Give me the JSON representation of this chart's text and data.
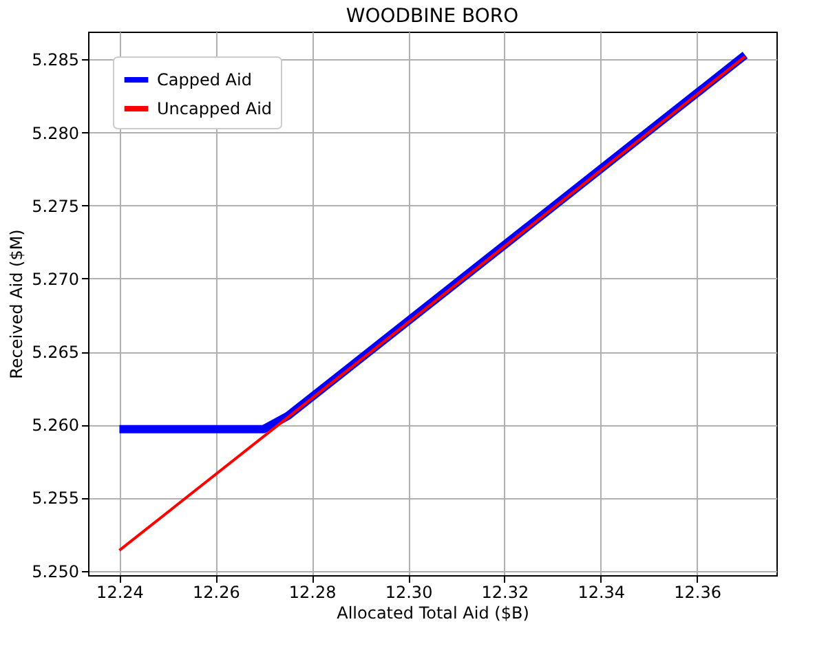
{
  "chart_data": {
    "type": "line",
    "title": "WOODBINE BORO",
    "xlabel": "Allocated Total Aid ($B)",
    "ylabel": "Received Aid ($M)",
    "series": [
      {
        "name": "Capped Aid",
        "color": "#0000ff",
        "x": [
          12.24,
          12.25,
          12.26,
          12.27,
          12.275,
          12.37
        ],
        "values": [
          5.2597,
          5.2597,
          5.2597,
          5.2597,
          5.2606,
          5.2853
        ]
      },
      {
        "name": "Uncapped Aid",
        "color": "#ff0000",
        "x": [
          12.24,
          12.37
        ],
        "values": [
          5.2514,
          5.2852
        ]
      }
    ],
    "xlim": [
      12.2335,
      12.3765
    ],
    "ylim": [
      5.2497,
      5.2869
    ],
    "xticks": [
      12.24,
      12.26,
      12.28,
      {
        "value": 12.3,
        "label": "12.30"
      },
      12.32,
      12.34,
      12.36
    ],
    "yticks": [
      {
        "value": 5.25,
        "label": "5.250"
      },
      5.255,
      {
        "value": 5.26,
        "label": "5.260"
      },
      5.265,
      {
        "value": 5.27,
        "label": "5.270"
      },
      5.275,
      {
        "value": 5.28,
        "label": "5.280"
      },
      5.285
    ],
    "grid": true,
    "legend": "top left",
    "marker": "none",
    "line_style": "solid"
  }
}
